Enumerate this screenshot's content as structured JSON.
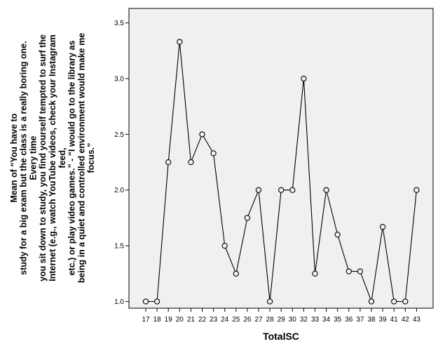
{
  "chart_data": {
    "type": "line",
    "title": "",
    "xlabel": "TotalSC",
    "ylabel_lines": [
      "Mean of “You have to",
      "study for a big exam but the class is a really boring one.",
      "Every time",
      "you sit down to study, you find yourself tempted to surf the",
      "Internet (e.g., watch YouTube videos, check your Instagram",
      "feed,",
      "etc.) or play video games.” - “I would go to the library as",
      "being in a quiet and controlled environment would make me",
      "focus.”"
    ],
    "categories": [
      "17",
      "18",
      "19",
      "20",
      "21",
      "22",
      "23",
      "24",
      "25",
      "26",
      "27",
      "28",
      "29",
      "30",
      "32",
      "33",
      "34",
      "35",
      "36",
      "37",
      "38",
      "39",
      "41",
      "42",
      "43"
    ],
    "values": [
      1.0,
      1.0,
      2.25,
      3.33,
      2.25,
      2.5,
      2.33,
      1.5,
      1.25,
      1.75,
      2.0,
      1.0,
      2.0,
      2.0,
      3.0,
      1.25,
      2.0,
      1.6,
      1.27,
      1.27,
      1.0,
      1.67,
      1.0,
      1.0,
      2.0
    ],
    "y_ticks": [
      "1.0",
      "1.5",
      "2.0",
      "2.5",
      "3.0",
      "3.5"
    ],
    "ylim": [
      0.94,
      3.63
    ],
    "grid": false,
    "colors": {
      "line": "#000000",
      "plot_bg": "#f0f0f0",
      "marker_fill": "#f0f0f0"
    }
  }
}
